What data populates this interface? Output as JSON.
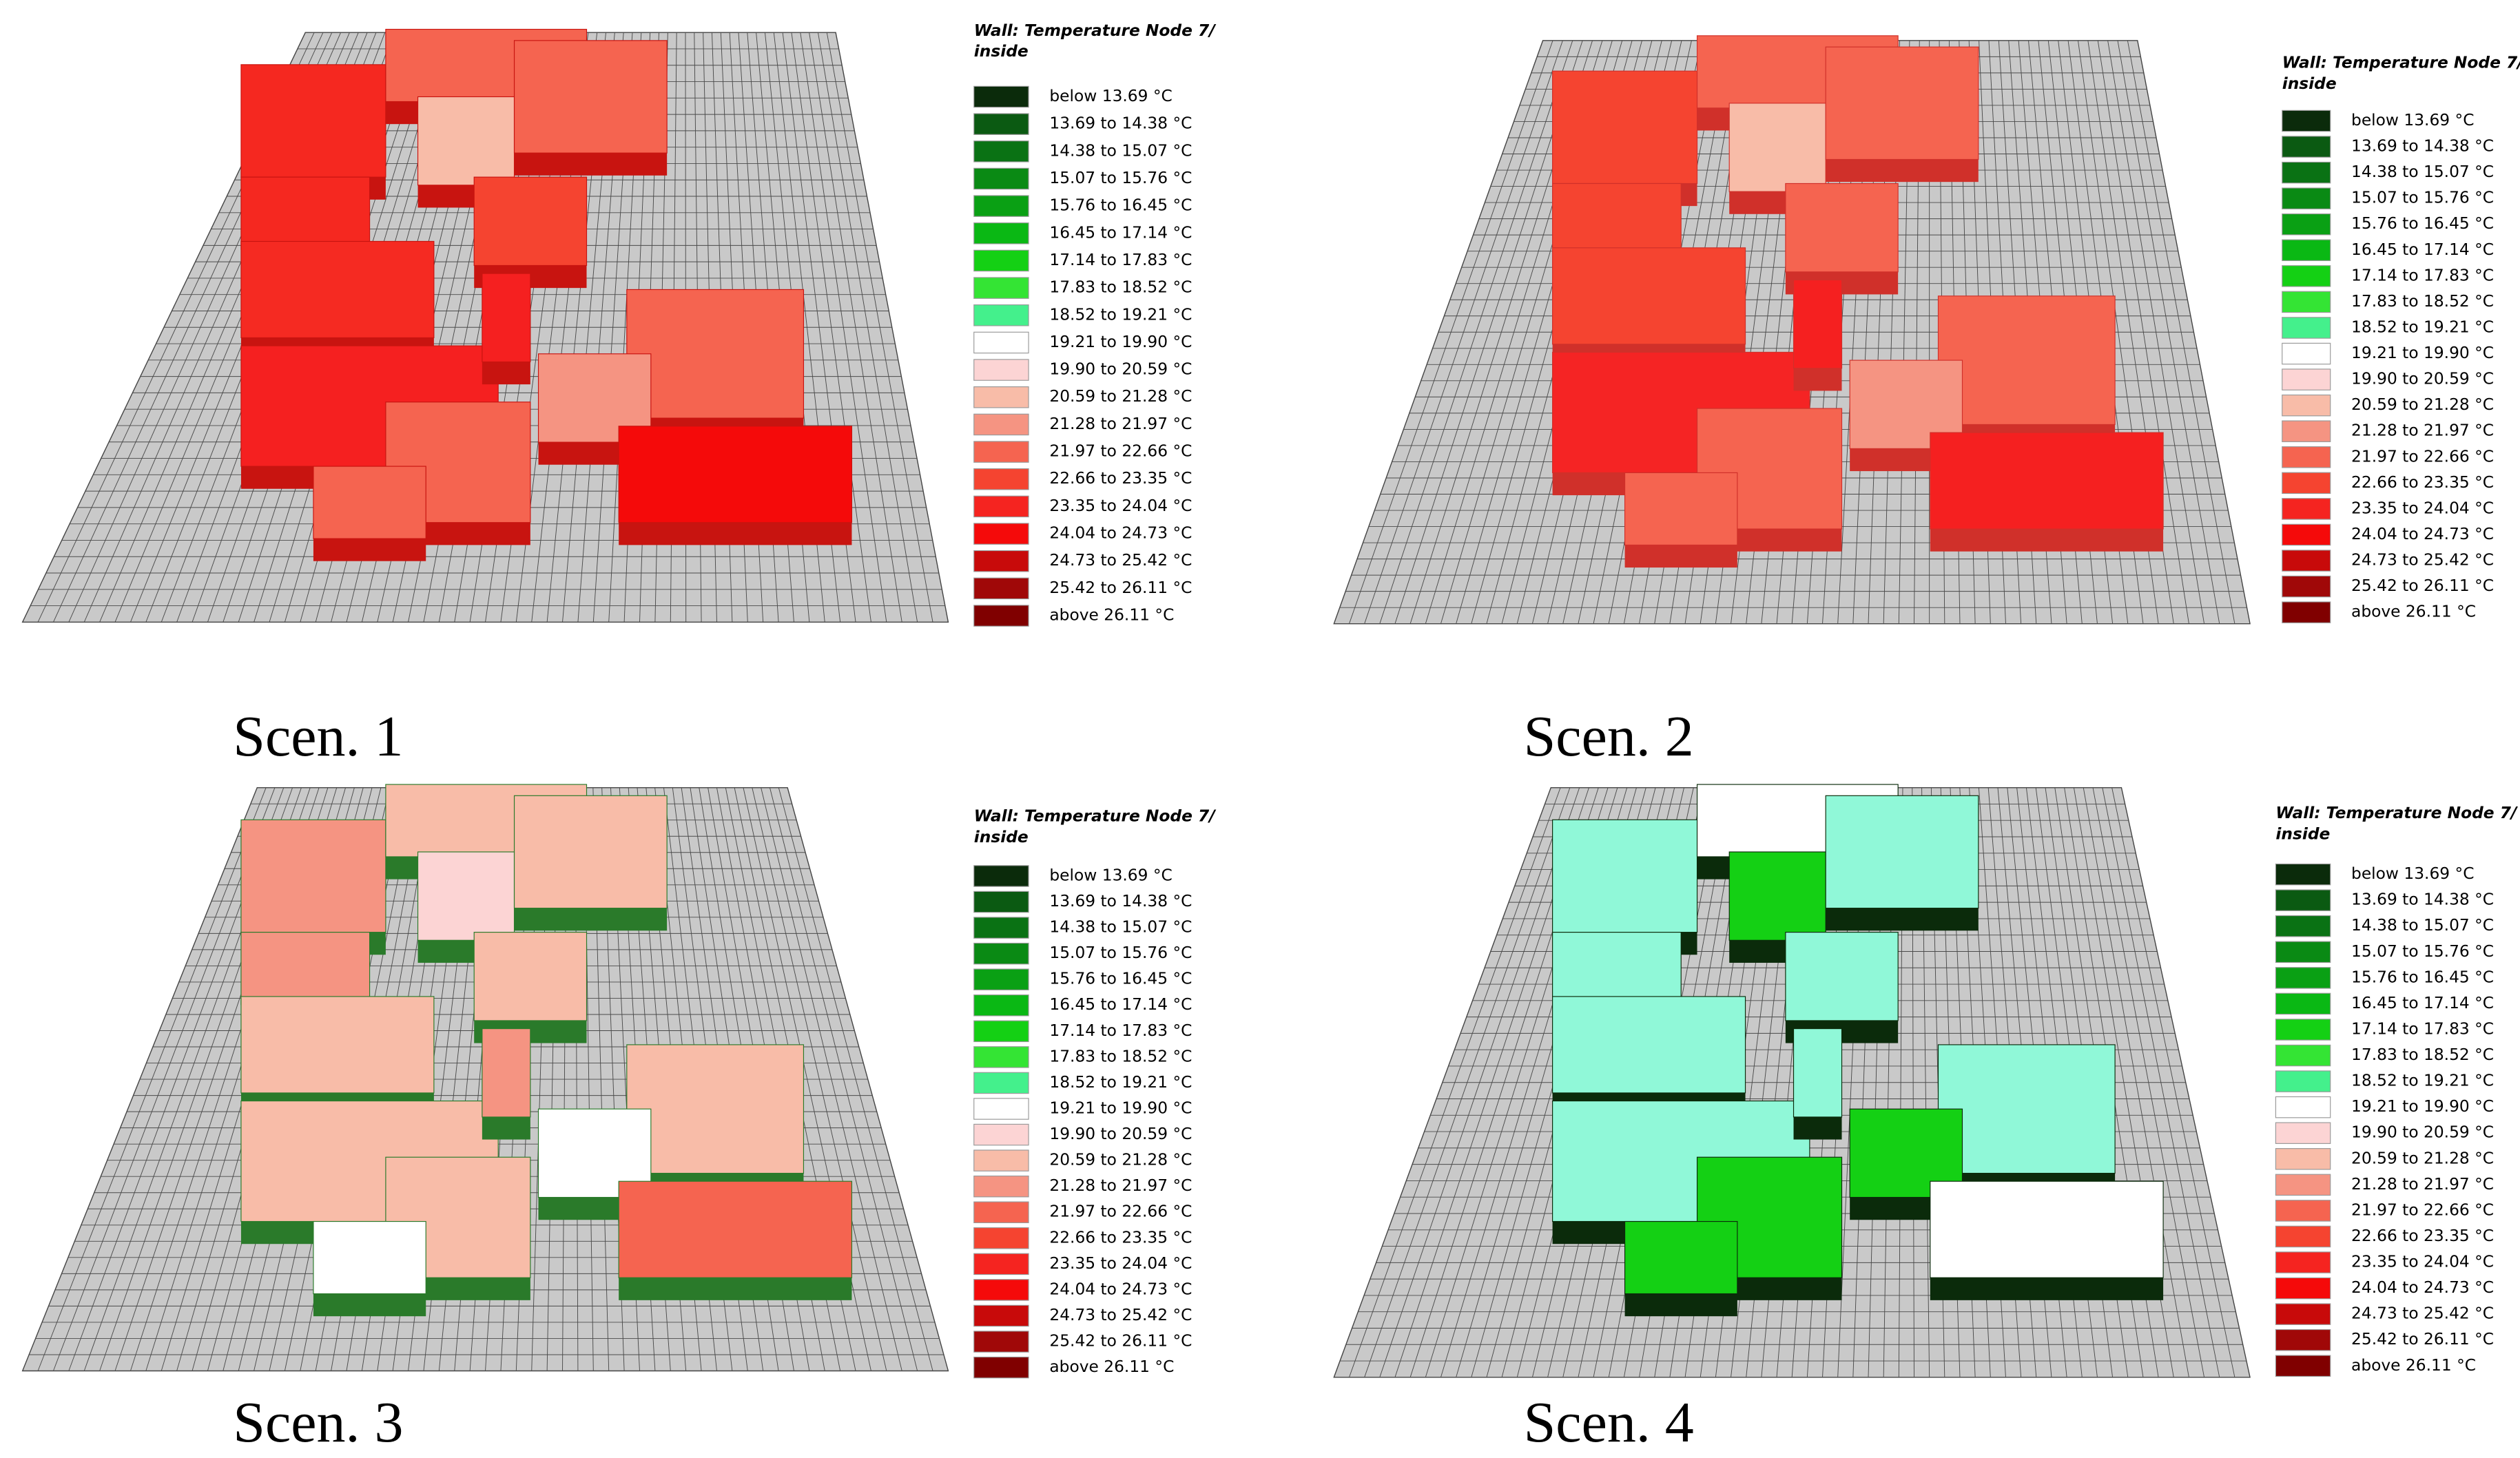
{
  "legend": {
    "title": "Wall: Temperature Node 7/ inside",
    "entries": [
      {
        "label": "below 13.69 °C",
        "color": "#0b2b0b"
      },
      {
        "label": "13.69 to 14.38 °C",
        "color": "#0b5a12"
      },
      {
        "label": "14.38 to 15.07 °C",
        "color": "#0a7214"
      },
      {
        "label": "15.07 to 15.76 °C",
        "color": "#0a8a14"
      },
      {
        "label": "15.76 to 16.45 °C",
        "color": "#0aa014"
      },
      {
        "label": "16.45 to 17.14 °C",
        "color": "#0ab814"
      },
      {
        "label": "17.14 to 17.83 °C",
        "color": "#14d014"
      },
      {
        "label": "17.83 to 18.52 °C",
        "color": "#34e434"
      },
      {
        "label": "18.52 to 19.21 °C",
        "color": "#44f08c"
      },
      {
        "label": "19.21 to 19.90 °C",
        "color": "#ffffff"
      },
      {
        "label": "19.90 to 20.59 °C",
        "color": "#fcd4d4"
      },
      {
        "label": "20.59 to 21.28 °C",
        "color": "#f8bca8"
      },
      {
        "label": "21.28 to 21.97 °C",
        "color": "#f59482"
      },
      {
        "label": "21.97 to 22.66 °C",
        "color": "#f56450"
      },
      {
        "label": "22.66 to 23.35 °C",
        "color": "#f54430"
      },
      {
        "label": "23.35 to 24.04 °C",
        "color": "#f52420"
      },
      {
        "label": "24.04 to 24.73 °C",
        "color": "#f50a0a"
      },
      {
        "label": "24.73 to 25.42 °C",
        "color": "#c80a0a"
      },
      {
        "label": "25.42 to 26.11 °C",
        "color": "#a00808"
      },
      {
        "label": "above 26.11 °C",
        "color": "#800000"
      }
    ]
  },
  "panels": [
    {
      "caption": "Scen. 1"
    },
    {
      "caption": "Scen. 2"
    },
    {
      "caption": "Scen. 3"
    },
    {
      "caption": "Scen. 4"
    }
  ]
}
